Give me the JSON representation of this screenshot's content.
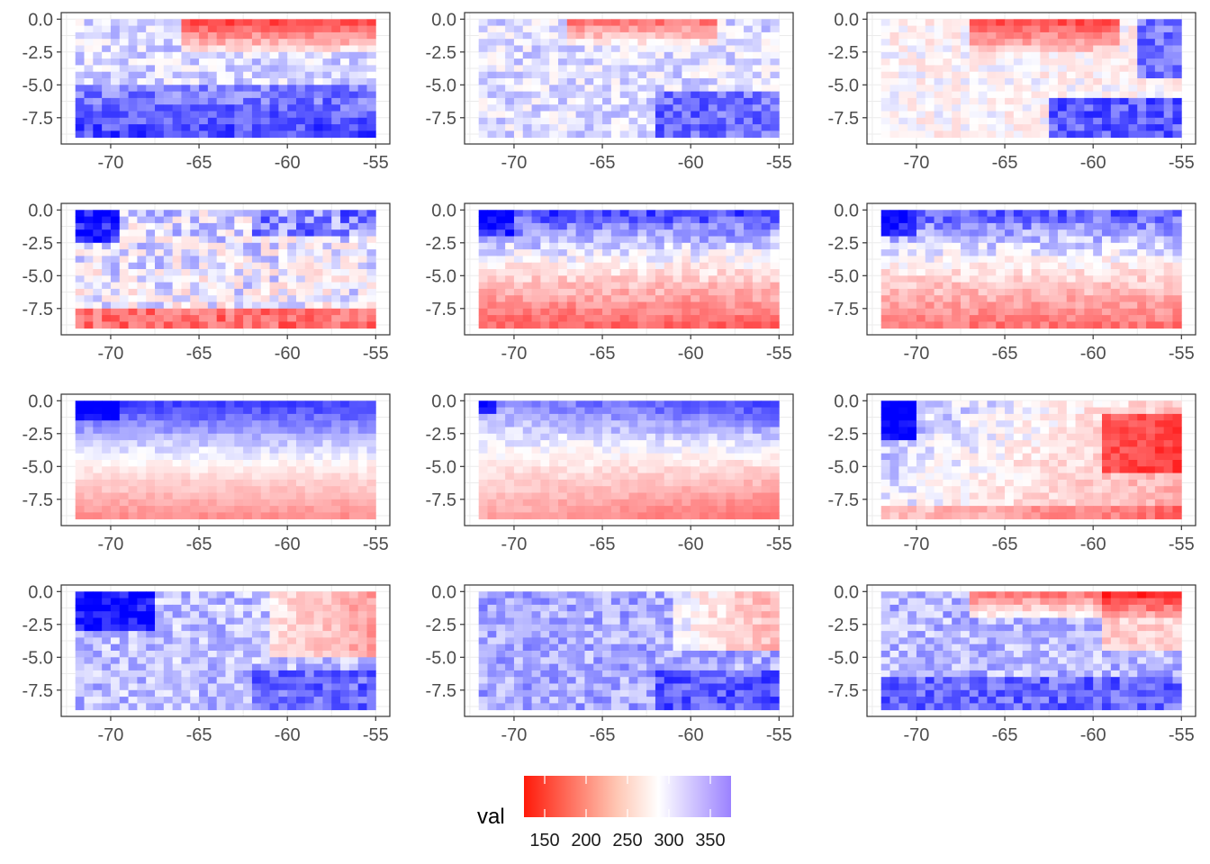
{
  "chart_data": {
    "type": "heatmap",
    "layout": "4x3 facet grid",
    "n_panels": 12,
    "x_ticks": [
      -70,
      -65,
      -60,
      -55
    ],
    "x_tick_labels": [
      "-70",
      "-65",
      "-60",
      "-55"
    ],
    "y_ticks": [
      0.0,
      -2.5,
      -5.0,
      -7.5
    ],
    "y_tick_labels": [
      "0.0",
      "-2.5",
      "-5.0",
      "-7.5"
    ],
    "xlim": [
      -72.8,
      -54.2
    ],
    "ylim": [
      -9.5,
      0.5
    ],
    "x_range": [
      -72,
      -55
    ],
    "y_range": [
      -9,
      0
    ],
    "grid": true,
    "legend": {
      "title": "val",
      "placement": "bottom",
      "range": [
        125,
        375
      ],
      "ticks": [
        150,
        200,
        250,
        300,
        350
      ],
      "tick_labels": [
        "150",
        "200",
        "250",
        "300",
        "350"
      ],
      "colors": {
        "low": "#ff0000",
        "mid": "#ffffff",
        "high": "#0000ff",
        "midpoint": 287.5
      }
    },
    "panels": [
      {
        "pattern": "topRed",
        "strength": 1.0
      },
      {
        "pattern": "topRedLight",
        "strength": 0.8
      },
      {
        "pattern": "topRedBottomBlue",
        "strength": 0.9
      },
      {
        "pattern": "topBlueBottomRedNoisy",
        "strength": 0.8
      },
      {
        "pattern": "topBlueBottomRed",
        "strength": 1.0
      },
      {
        "pattern": "topBlueBottomRed",
        "strength": 0.9
      },
      {
        "pattern": "topBlueBottomRedSmooth",
        "strength": 0.9
      },
      {
        "pattern": "topBlueDiagonal",
        "strength": 0.8
      },
      {
        "pattern": "leftBlueRightRed",
        "strength": 0.9
      },
      {
        "pattern": "leftBlueTopRightRed",
        "strength": 1.0
      },
      {
        "pattern": "topRightRed",
        "strength": 0.9
      },
      {
        "pattern": "topRightRedBottomBlue",
        "strength": 0.9
      }
    ]
  }
}
